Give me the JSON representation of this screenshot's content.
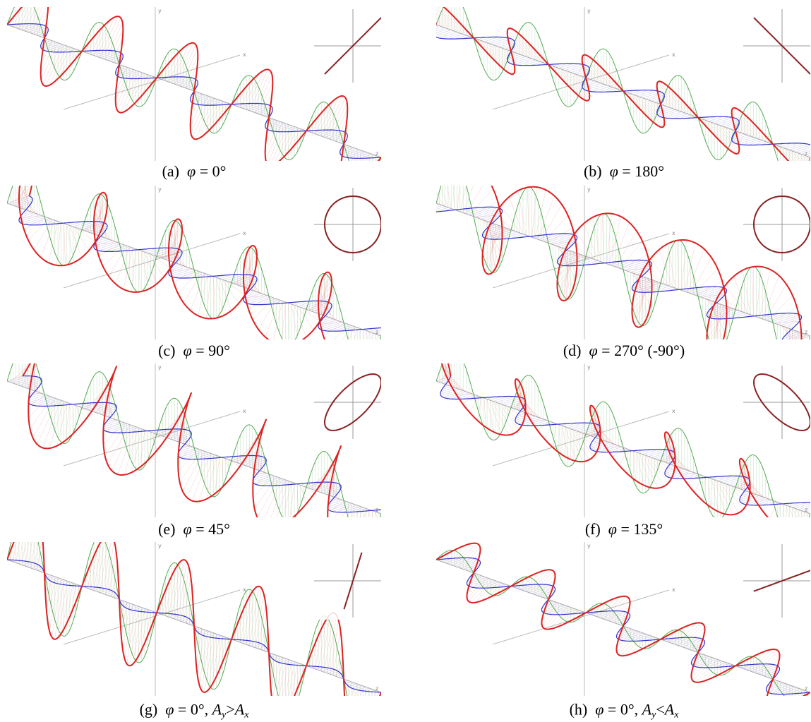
{
  "axis_labels": {
    "x": "x",
    "y": "y",
    "z": "z"
  },
  "panels": [
    {
      "caption": {
        "label": "(a)",
        "phi": "φ",
        "rest": "= 0°"
      }
    },
    {
      "caption": {
        "label": "(b)",
        "phi": "φ",
        "rest": "= 180°"
      }
    },
    {
      "caption": {
        "label": "(c)",
        "phi": "φ",
        "rest": "= 90°"
      }
    },
    {
      "caption": {
        "label": "(d)",
        "phi": "φ",
        "rest": "= 270° (-90°)"
      }
    },
    {
      "caption": {
        "label": "(e)",
        "phi": "φ",
        "rest": "= 45°"
      }
    },
    {
      "caption": {
        "label": "(f)",
        "phi": "φ",
        "rest": "= 135°"
      }
    },
    {
      "caption": {
        "label": "(g)",
        "phi": "φ",
        "rest": "= 0°,",
        "cond": {
          "a1": "A",
          "s1": "y",
          "op": ">",
          "a2": "A",
          "s2": "x"
        }
      }
    },
    {
      "caption": {
        "label": "(h)",
        "phi": "φ",
        "rest": "= 0°,",
        "cond": {
          "a1": "A",
          "s1": "y",
          "op": "<",
          "a2": "A",
          "s2": "x"
        }
      }
    }
  ]
}
